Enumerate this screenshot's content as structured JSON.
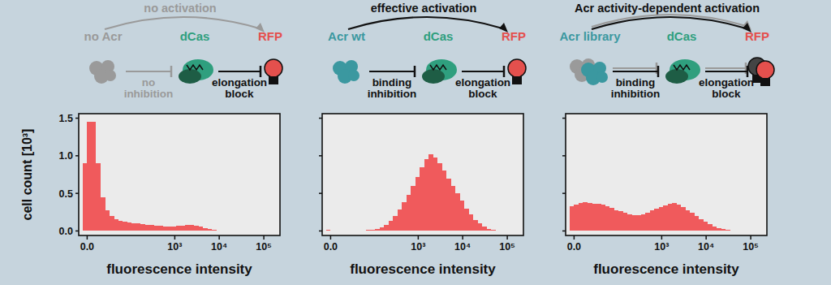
{
  "diagram": {
    "panels": [
      {
        "title": "no activation",
        "nodes": [
          "no Acr",
          "dCas",
          "RFP"
        ],
        "edges": [
          "no inhibition",
          "elongation block"
        ]
      },
      {
        "title": "effective activation",
        "nodes": [
          "Acr wt",
          "dCas",
          "RFP"
        ],
        "edges": [
          "binding inhibition",
          "elongation block"
        ]
      },
      {
        "title": "Acr activity-dependent activation",
        "nodes": [
          "Acr library",
          "dCas",
          "RFP"
        ],
        "edges": [
          "binding inhibition",
          "elongation block"
        ]
      }
    ]
  },
  "chart_data": [
    {
      "type": "histogram",
      "x_label": "fluorescence intensity",
      "y_label": "cell count [10³]",
      "color": "#f05a5c",
      "log": "x",
      "bins": [
        -3,
        0,
        3,
        6,
        11,
        17,
        24,
        33,
        44,
        58,
        76,
        99,
        128,
        163,
        208,
        265,
        337,
        427,
        540,
        683,
        863,
        1090,
        1370,
        1730,
        2180,
        2750,
        3470,
        4370,
        5500,
        6930,
        8730,
        11000,
        13800,
        17400,
        21900,
        27600,
        34800,
        43800,
        55100,
        69400,
        87400,
        110000
      ],
      "values": [
        0.9,
        1.45,
        1.45,
        0.9,
        0.45,
        0.28,
        0.2,
        0.16,
        0.13,
        0.12,
        0.11,
        0.1,
        0.1,
        0.09,
        0.08,
        0.08,
        0.07,
        0.07,
        0.06,
        0.06,
        0.06,
        0.07,
        0.07,
        0.08,
        0.08,
        0.07,
        0.06,
        0.04,
        0.03,
        0.02,
        0.01,
        0.01,
        0,
        0,
        0,
        0,
        0,
        0,
        0,
        0,
        0
      ],
      "xlim": [
        -6,
        230000
      ],
      "ylim": [
        -0.06,
        1.56
      ],
      "xticks": [
        {
          "value": 0,
          "label": "0.0"
        },
        {
          "value": 1000,
          "label": "10³"
        },
        {
          "value": 10000,
          "label": "10⁴"
        },
        {
          "value": 100000,
          "label": "10⁵"
        }
      ],
      "yticks": [
        {
          "value": 0,
          "label": "0.0"
        },
        {
          "value": 0.5,
          "label": "0.5"
        },
        {
          "value": 1,
          "label": "1.0"
        },
        {
          "value": 1.5,
          "label": "1.5"
        }
      ]
    },
    {
      "type": "histogram",
      "x_label": "fluorescence intensity",
      "color": "#f05a5c",
      "log": "x",
      "tick_labels": "x",
      "bins": [
        -3,
        0,
        3,
        6,
        11,
        17,
        24,
        33,
        44,
        58,
        76,
        99,
        128,
        163,
        208,
        265,
        337,
        427,
        540,
        683,
        863,
        1090,
        1370,
        1730,
        2180,
        2750,
        3470,
        4370,
        5500,
        6930,
        8730,
        11000,
        13800,
        17400,
        21900,
        27600,
        34800,
        43800,
        55100,
        69400,
        87400,
        110000
      ],
      "values": [
        0.02,
        0.01,
        0,
        0,
        0,
        0,
        0.005,
        0.01,
        0.01,
        0.015,
        0.02,
        0.03,
        0.05,
        0.08,
        0.13,
        0.2,
        0.29,
        0.38,
        0.48,
        0.6,
        0.72,
        0.85,
        0.96,
        1.02,
        0.98,
        0.9,
        0.8,
        0.7,
        0.6,
        0.5,
        0.4,
        0.3,
        0.22,
        0.15,
        0.1,
        0.06,
        0.03,
        0.015,
        0.005,
        0,
        0
      ],
      "xlim": [
        -6,
        230000
      ],
      "ylim": [
        -0.06,
        1.56
      ],
      "xticks": [
        {
          "value": 0,
          "label": "0.0"
        },
        {
          "value": 1000,
          "label": "10³"
        },
        {
          "value": 10000,
          "label": "10⁴"
        },
        {
          "value": 100000,
          "label": "10⁵"
        }
      ],
      "yticks": [
        {
          "value": 0,
          "label": "0.0"
        },
        {
          "value": 0.5,
          "label": "0.5"
        },
        {
          "value": 1,
          "label": "1.0"
        },
        {
          "value": 1.5,
          "label": "1.5"
        }
      ]
    },
    {
      "type": "histogram",
      "x_label": "fluorescence intensity",
      "color": "#f05a5c",
      "log": "x",
      "tick_labels": "x",
      "bins": [
        -3,
        0,
        3,
        6,
        11,
        17,
        24,
        33,
        44,
        58,
        76,
        99,
        128,
        163,
        208,
        265,
        337,
        427,
        540,
        683,
        863,
        1090,
        1370,
        1730,
        2180,
        2750,
        3470,
        4370,
        5500,
        6930,
        8730,
        11000,
        13800,
        17400,
        21900,
        27600,
        34800,
        43800,
        55100,
        69400,
        87400,
        110000
      ],
      "values": [
        0.33,
        0.35,
        0.37,
        0.38,
        0.37,
        0.36,
        0.36,
        0.35,
        0.33,
        0.31,
        0.28,
        0.26,
        0.24,
        0.22,
        0.21,
        0.21,
        0.22,
        0.24,
        0.27,
        0.3,
        0.32,
        0.34,
        0.36,
        0.37,
        0.35,
        0.32,
        0.28,
        0.24,
        0.2,
        0.16,
        0.12,
        0.09,
        0.06,
        0.04,
        0.025,
        0.015,
        0.008,
        0,
        0,
        0,
        0
      ],
      "xlim": [
        -6,
        230000
      ],
      "ylim": [
        -0.06,
        1.56
      ],
      "xticks": [
        {
          "value": 0,
          "label": "0.0"
        },
        {
          "value": 1000,
          "label": "10³"
        },
        {
          "value": 10000,
          "label": "10⁴"
        },
        {
          "value": 100000,
          "label": "10⁵"
        }
      ],
      "yticks": [
        {
          "value": 0,
          "label": "0.0"
        },
        {
          "value": 0.5,
          "label": "0.5"
        },
        {
          "value": 1,
          "label": "1.0"
        },
        {
          "value": 1.5,
          "label": "1.5"
        }
      ]
    }
  ]
}
